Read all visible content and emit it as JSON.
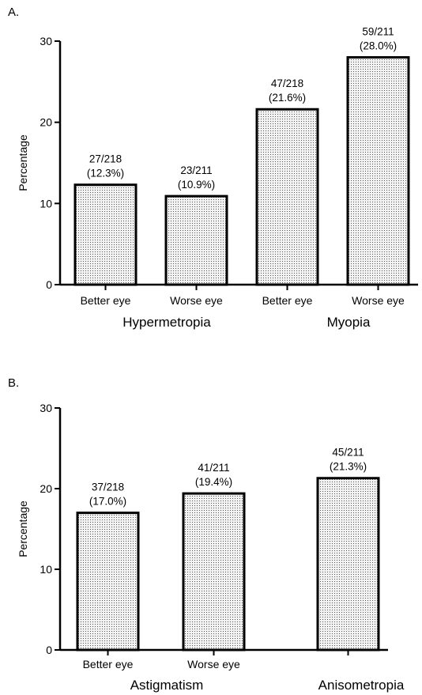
{
  "chart_data": [
    {
      "panel": "A.",
      "type": "bar",
      "ylabel": "Percentage",
      "ylim": [
        0,
        30
      ],
      "yticks": [
        "0",
        "10",
        "20",
        "30"
      ],
      "categories": [
        "Better eye",
        "Worse eye",
        "Better eye",
        "Worse eye"
      ],
      "groups": [
        "Hypermetropia",
        "Myopia"
      ],
      "values": [
        12.3,
        10.9,
        21.6,
        28.0
      ],
      "labels": [
        {
          "count": "27/218",
          "pct": "(12.3%)"
        },
        {
          "count": "23/211",
          "pct": "(10.9%)"
        },
        {
          "count": "47/218",
          "pct": "(21.6%)"
        },
        {
          "count": "59/211",
          "pct": "(28.0%)"
        }
      ]
    },
    {
      "panel": "B.",
      "type": "bar",
      "ylabel": "Percentage",
      "ylim": [
        0,
        30
      ],
      "yticks": [
        "0",
        "10",
        "20",
        "30"
      ],
      "categories": [
        "Better eye",
        "Worse eye",
        ""
      ],
      "groups": [
        "Astigmatism",
        "Anisometropia"
      ],
      "values": [
        17.0,
        19.4,
        21.3
      ],
      "labels": [
        {
          "count": "37/218",
          "pct": "(17.0%)"
        },
        {
          "count": "41/211",
          "pct": "(19.4%)"
        },
        {
          "count": "45/211",
          "pct": "(21.3%)"
        }
      ]
    }
  ],
  "colors": {
    "bar_fill": "#e6e6e6",
    "stroke": "#000000"
  }
}
